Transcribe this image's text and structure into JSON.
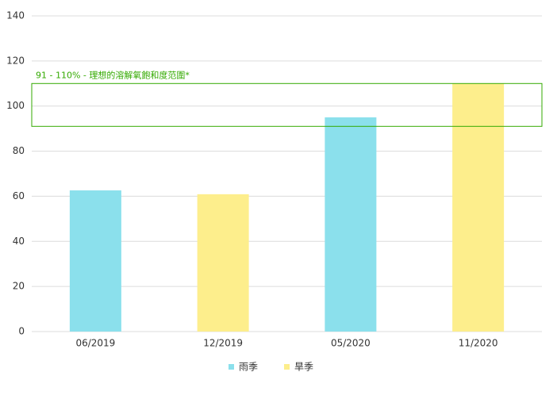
{
  "chart_data": {
    "type": "bar",
    "categories": [
      "06/2019",
      "12/2019",
      "05/2020",
      "11/2020"
    ],
    "series": [
      {
        "name": "雨季",
        "color": "#8be0ec",
        "values": [
          62.6,
          null,
          95,
          null
        ]
      },
      {
        "name": "旱季",
        "color": "#fdee8c",
        "values": [
          null,
          60.9,
          null,
          110
        ]
      }
    ],
    "ylim": [
      0,
      140
    ],
    "yticks": [
      0,
      20,
      40,
      60,
      80,
      100,
      120,
      140
    ],
    "grid": true,
    "band": {
      "from": 91,
      "to": 110,
      "label": "91 - 110% - 理想的溶解氧飽和度范圍*",
      "color": "#33aa00"
    }
  }
}
